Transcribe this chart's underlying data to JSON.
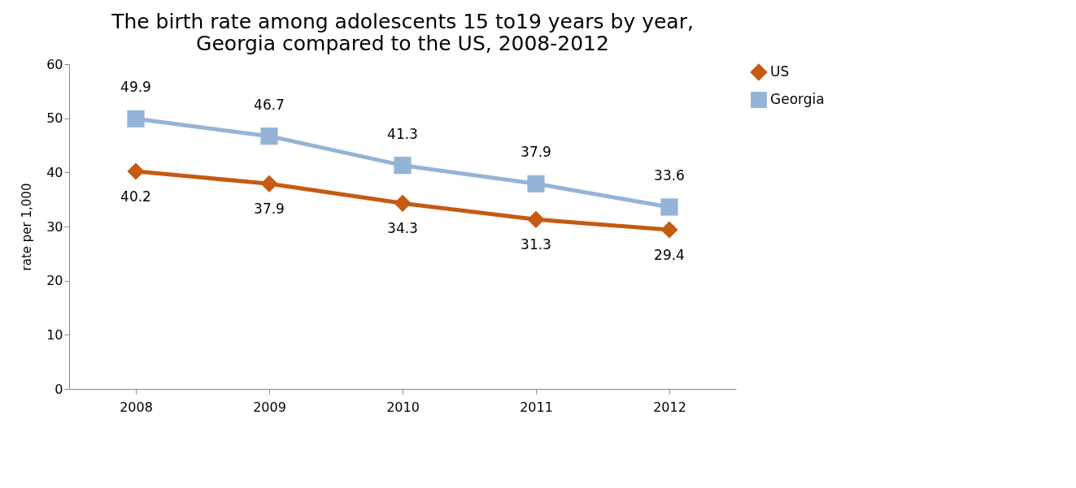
{
  "chart_data": {
    "type": "line",
    "title": "The birth rate among adolescents 15 to19 years by year, Georgia compared to the US, 2008-2012",
    "ylabel": "rate per 1,000",
    "categories": [
      "2008",
      "2009",
      "2010",
      "2011",
      "2012"
    ],
    "series": [
      {
        "name": "US",
        "color": "#c55a11",
        "marker": "diamond",
        "values": [
          40.2,
          37.9,
          34.3,
          31.3,
          29.4
        ]
      },
      {
        "name": "Georgia",
        "color": "#95b3d7",
        "marker": "square",
        "values": [
          49.9,
          46.7,
          41.3,
          37.9,
          33.6
        ]
      }
    ],
    "ylim": [
      0,
      60
    ],
    "yticks": [
      0,
      10,
      20,
      30,
      40,
      50,
      60
    ],
    "grid": false,
    "legend": "right",
    "data_labels": true,
    "line_style": "solid"
  }
}
